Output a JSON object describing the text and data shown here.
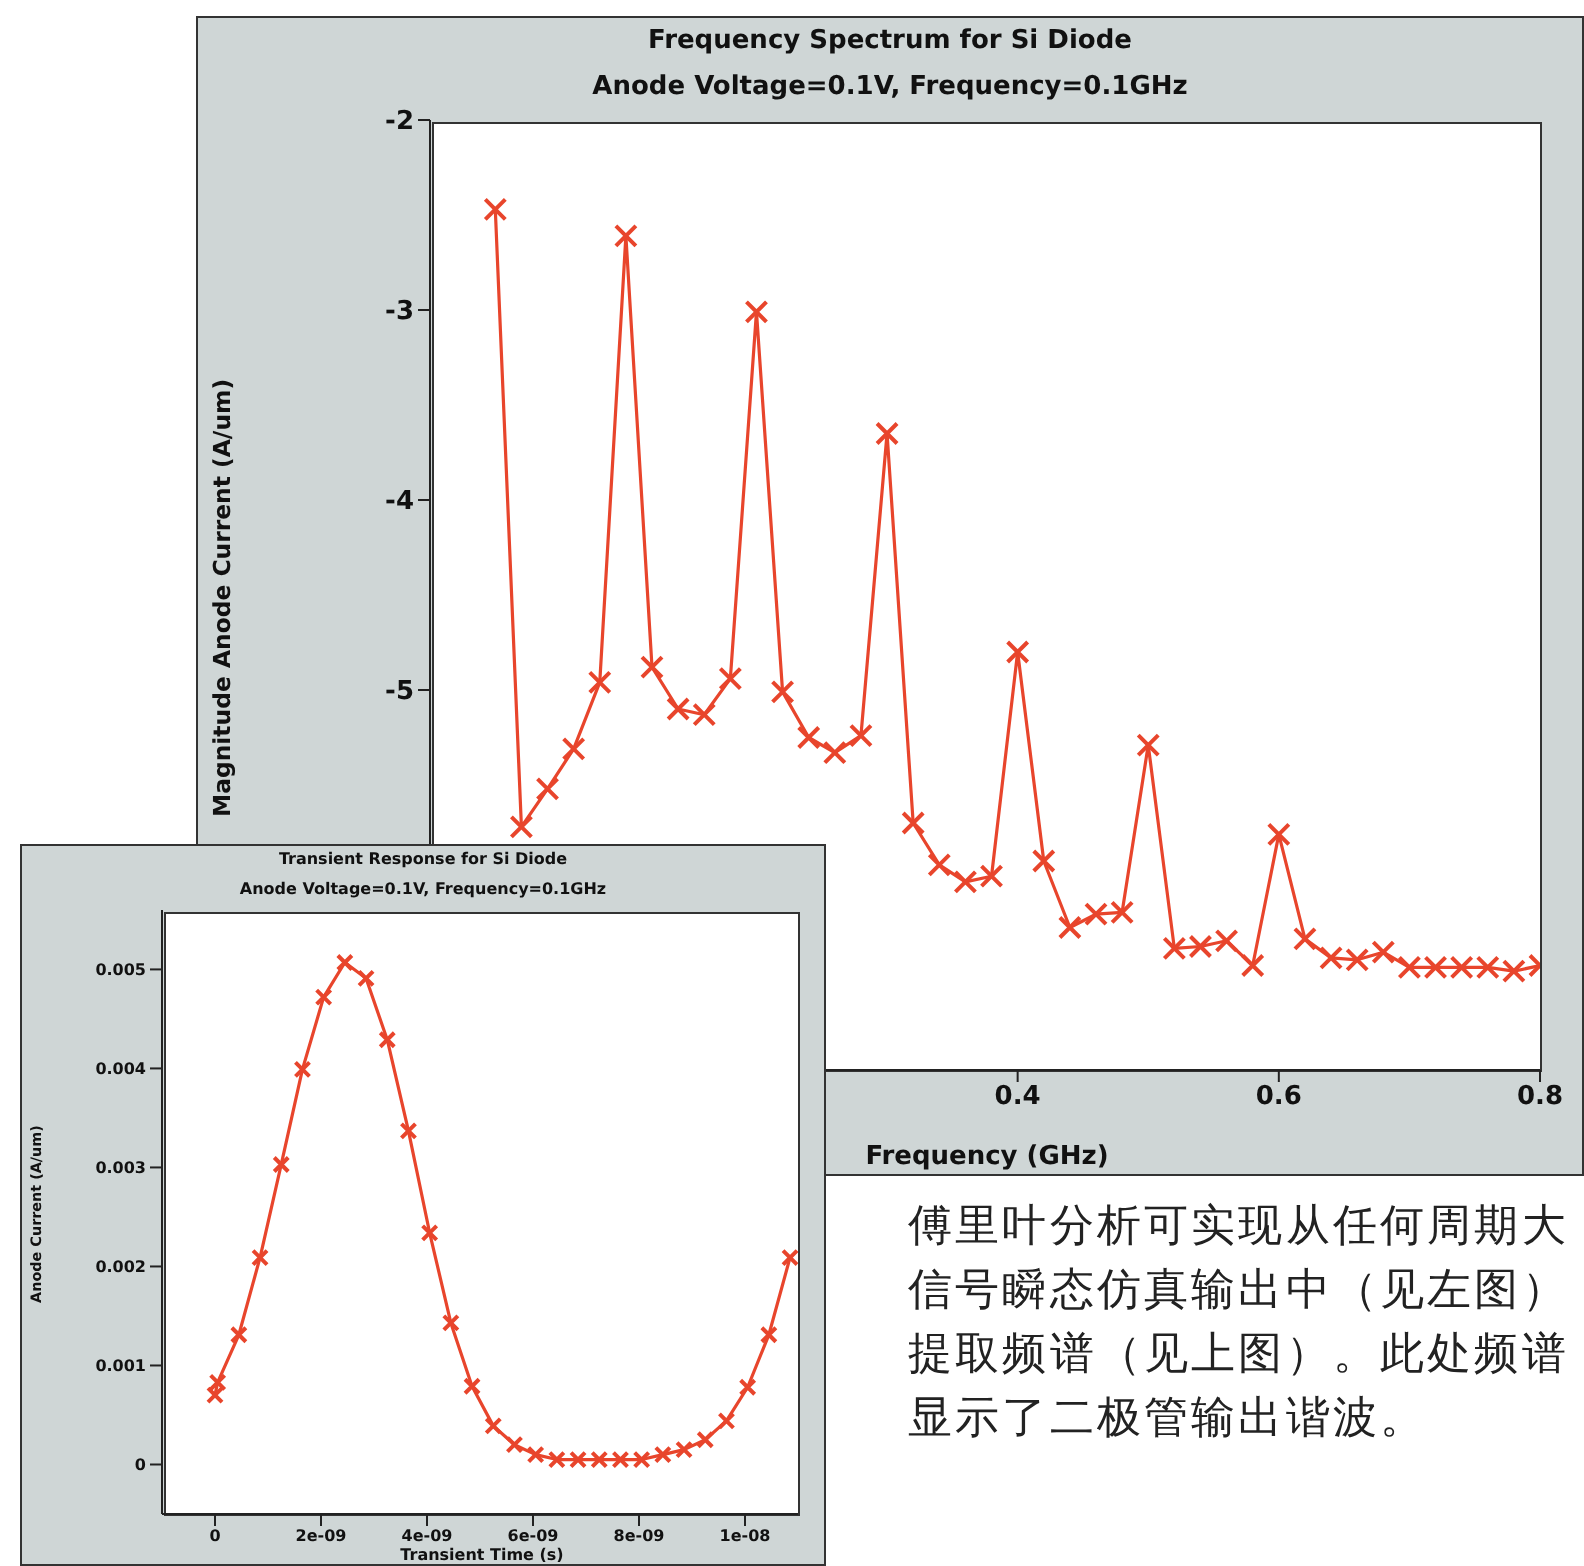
{
  "chart_data": [
    {
      "type": "line",
      "title": "Frequency Spectrum for Si Diode",
      "subtitle": "Anode Voltage=0.1V, Frequency=0.1GHz",
      "xlabel": "Frequency (GHz)",
      "ylabel": "Magnitude Anode Current (A/um)",
      "x": [
        0,
        0.02,
        0.04,
        0.06,
        0.08,
        0.1,
        0.12,
        0.14,
        0.16,
        0.18,
        0.2,
        0.22,
        0.24,
        0.26,
        0.28,
        0.3,
        0.32,
        0.34,
        0.36,
        0.38,
        0.4,
        0.42,
        0.44,
        0.46,
        0.48,
        0.5,
        0.52,
        0.54,
        0.56,
        0.58,
        0.6,
        0.62,
        0.64,
        0.66,
        0.68,
        0.7,
        0.72,
        0.74,
        0.76,
        0.78,
        0.8
      ],
      "series": [
        {
          "color": "#e8452c",
          "values": [
            -2.47,
            -5.72,
            -5.52,
            -5.31,
            -4.96,
            -2.61,
            -4.88,
            -5.1,
            -5.13,
            -4.94,
            -3.01,
            -5.01,
            -5.25,
            -5.33,
            -5.24,
            -3.65,
            -5.7,
            -5.92,
            -6.01,
            -5.98,
            -4.8,
            -5.9,
            -6.25,
            -6.18,
            -6.17,
            -5.29,
            -6.36,
            -6.35,
            -6.32,
            -6.45,
            -5.76,
            -6.31,
            -6.41,
            -6.42,
            -6.38,
            -6.46,
            -6.46,
            -6.46,
            -6.46,
            -6.48,
            -6.45
          ]
        }
      ],
      "xlim": [
        -0.05,
        0.8
      ],
      "xticks": [
        0.4,
        0.6,
        0.8
      ],
      "ylim": [
        -7,
        -2
      ],
      "yticks": [
        -2,
        -3,
        -4,
        -5
      ],
      "marker": "cross",
      "annotations": [
        "傅里叶分析可实现从任何周期大信号瞬态仿真输出中（见左图）提取频谱（见上图）。此处频谱显示了二极管输出谐波。"
      ]
    },
    {
      "type": "line",
      "title": "Transient Response for Si Diode",
      "subtitle": "Anode Voltage=0.1V, Frequency=0.1GHz",
      "xlabel": "Transient Time (s)",
      "ylabel": "Anode Current (A/um)",
      "x": [
        0,
        5e-11,
        4.5e-10,
        8.5e-10,
        1.25e-09,
        1.65e-09,
        2.05e-09,
        2.45e-09,
        2.85e-09,
        3.25e-09,
        3.65e-09,
        4.05e-09,
        4.45e-09,
        4.85e-09,
        5.25e-09,
        5.65e-09,
        6.05e-09,
        6.45e-09,
        6.85e-09,
        7.25e-09,
        7.65e-09,
        8.05e-09,
        8.45e-09,
        8.85e-09,
        9.25e-09,
        9.65e-09,
        1.005e-08,
        1.045e-08,
        1.085e-08
      ],
      "series": [
        {
          "color": "#e8452c",
          "values": [
            0.0007,
            0.00083,
            0.00131,
            0.00209,
            0.00303,
            0.00399,
            0.00472,
            0.00507,
            0.00491,
            0.00429,
            0.00337,
            0.00234,
            0.00143,
            0.00079,
            0.00039,
            0.0002,
            0.0001,
            5e-05,
            5e-05,
            5e-05,
            5e-05,
            5e-05,
            0.0001,
            0.00015,
            0.00025,
            0.00044,
            0.00078,
            0.00131,
            0.00209
          ]
        }
      ],
      "xlim": [
        -1e-09,
        1.1e-08
      ],
      "xticks": [
        0,
        {
          "value": 2e-09,
          "label": "2e-09"
        },
        {
          "value": 4e-09,
          "label": "4e-09"
        },
        {
          "value": 6e-09,
          "label": "6e-09"
        },
        {
          "value": 8e-09,
          "label": "8e-09"
        },
        {
          "value": 1e-08,
          "label": "1e-08"
        }
      ],
      "ylim": [
        -0.0005,
        0.0056
      ],
      "yticks": [
        0,
        0.001,
        0.002,
        0.003,
        0.004,
        0.005
      ],
      "marker": "cross"
    }
  ]
}
